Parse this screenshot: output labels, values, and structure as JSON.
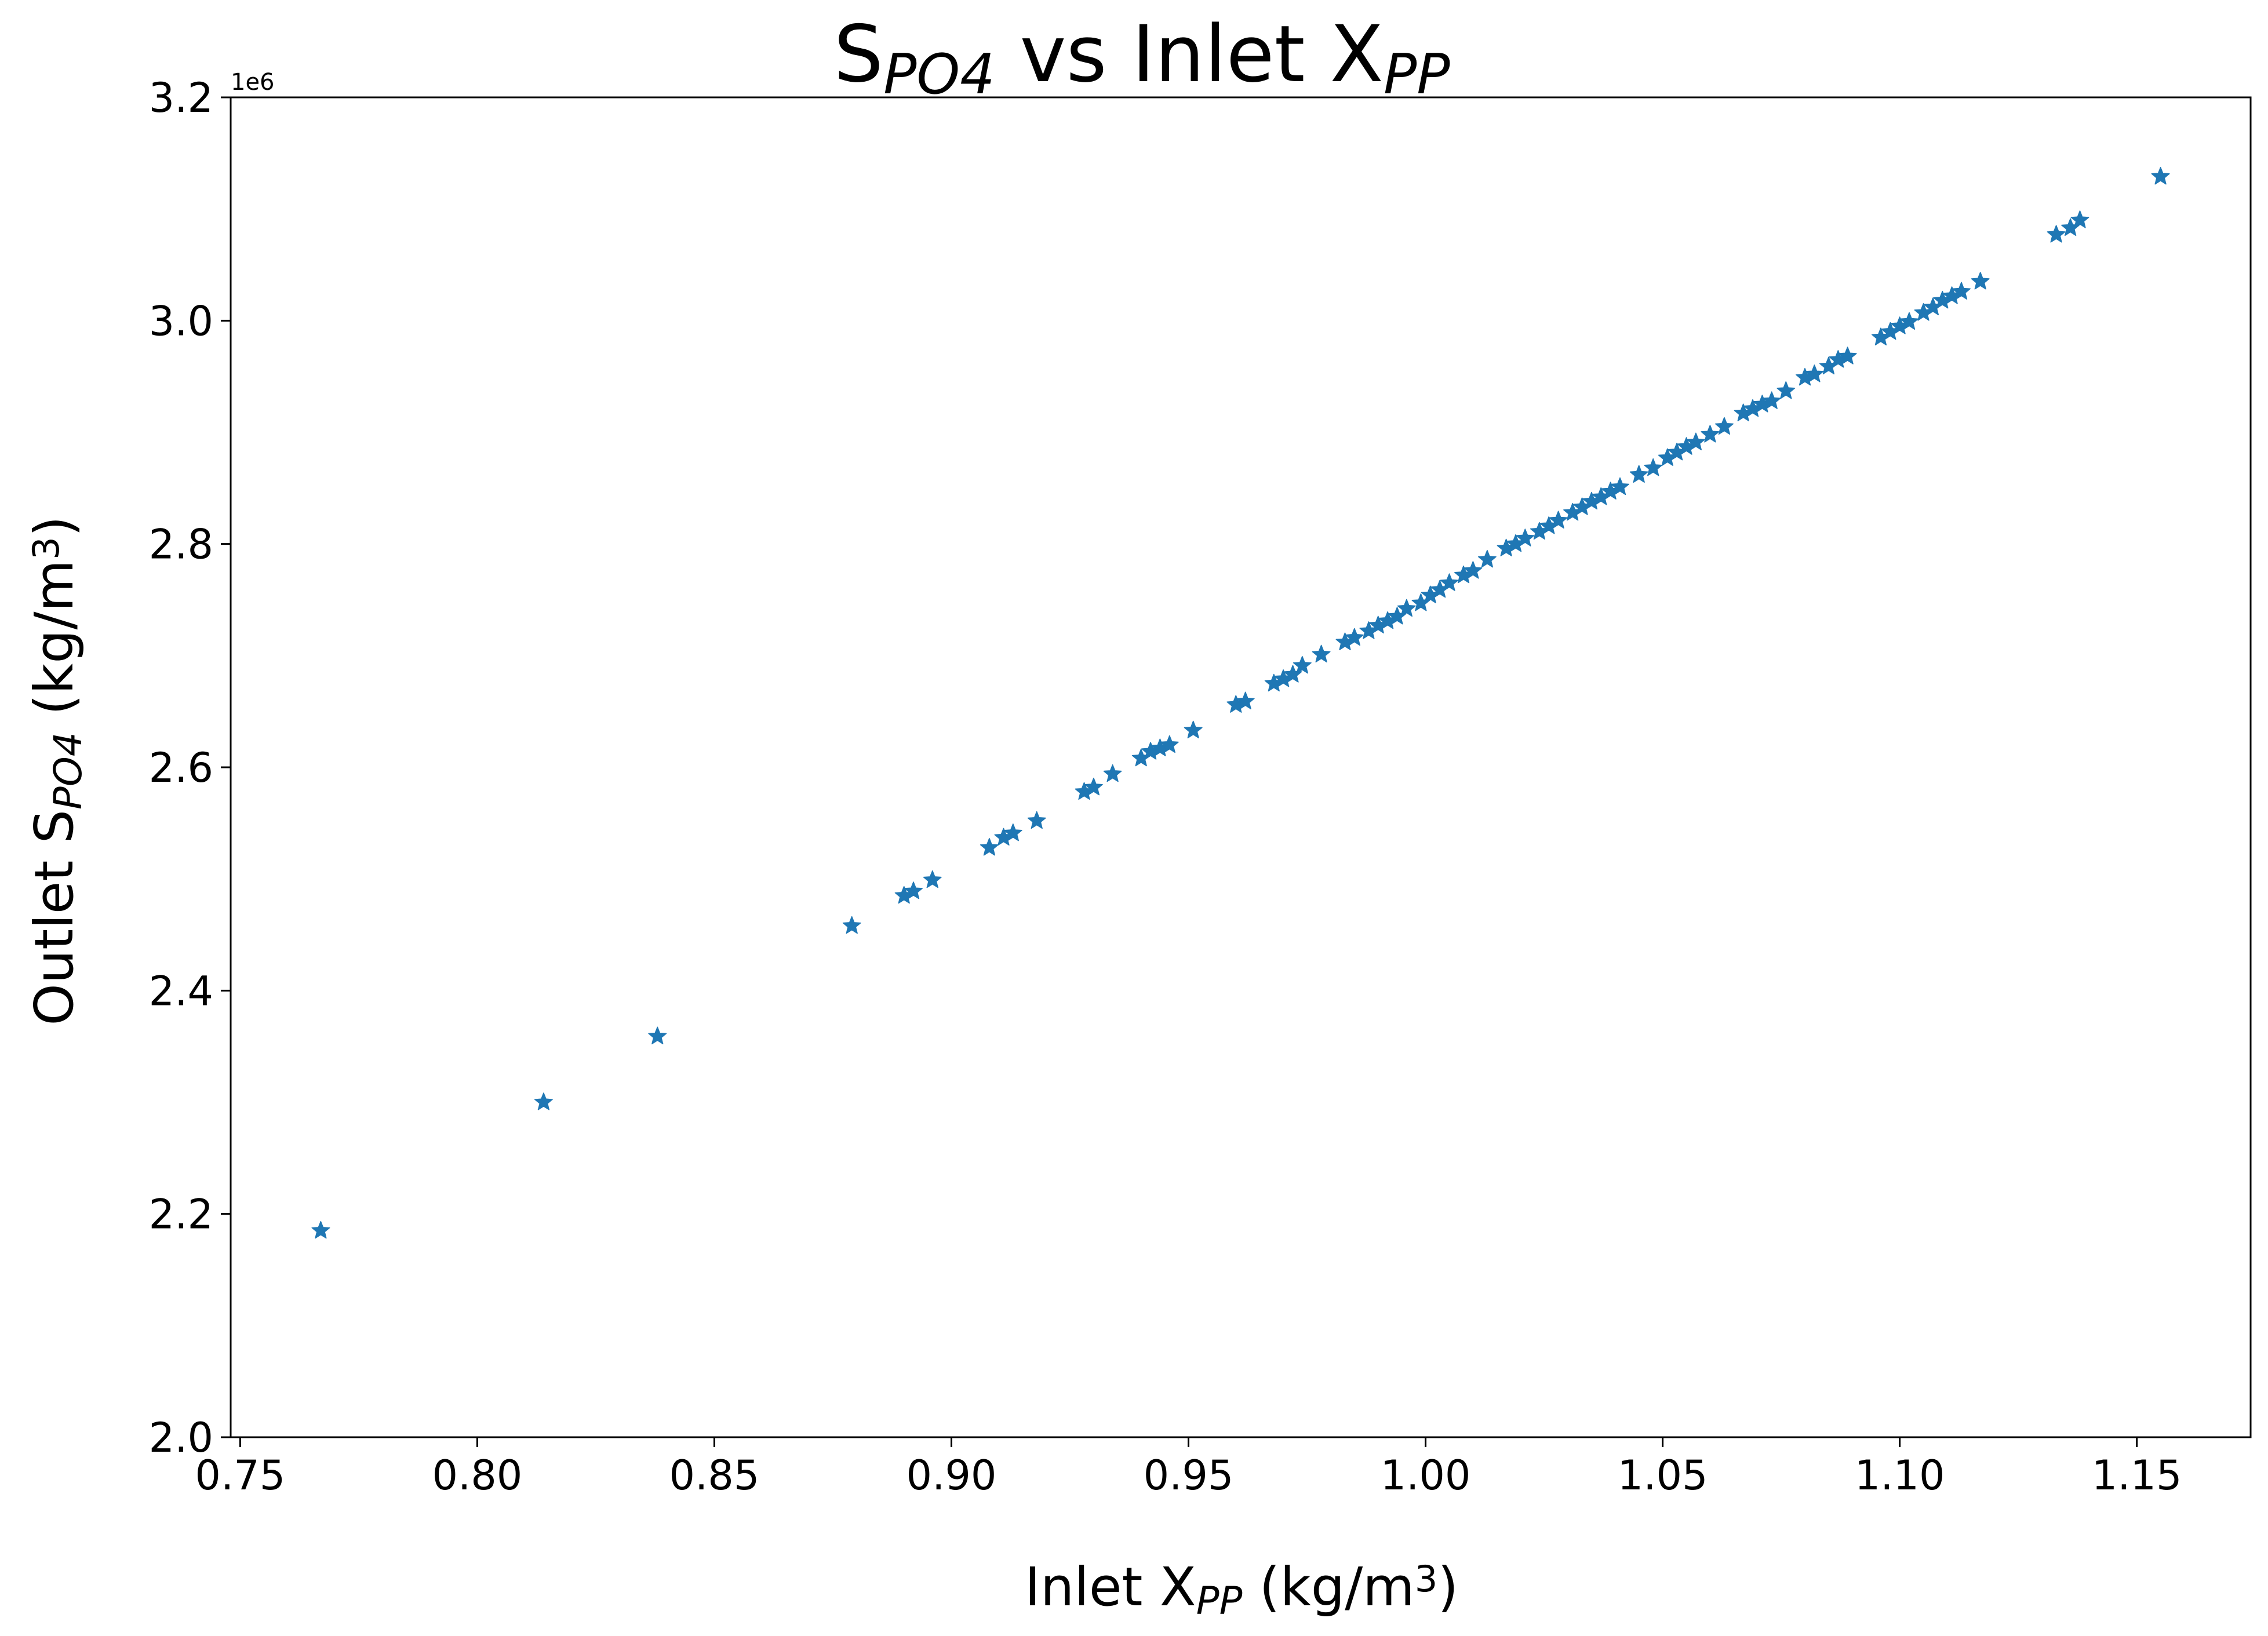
{
  "chart_data": {
    "type": "scatter",
    "title": {
      "main": "S",
      "sub1": "PO4",
      "mid": " vs Inlet X",
      "sub2": "PP"
    },
    "xlabel": {
      "main": "Inlet X",
      "sub": "PP",
      "unit_pre": " (kg/m",
      "sup": "3",
      "unit_post": ")"
    },
    "ylabel": {
      "main": "Outlet S",
      "sub": "PO4",
      "unit_pre": " (kg/m",
      "sup": "3",
      "unit_post": ")"
    },
    "y_offset_label": "1e6",
    "xlim": [
      0.748,
      1.174
    ],
    "ylim": [
      2.0,
      3.2
    ],
    "y_scale_factor": 1000000,
    "x_ticks": [
      "0.75",
      "0.80",
      "0.85",
      "0.90",
      "0.95",
      "1.00",
      "1.05",
      "1.10",
      "1.15"
    ],
    "y_ticks": [
      "2.0",
      "2.2",
      "2.4",
      "2.6",
      "2.8",
      "3.0",
      "3.2"
    ],
    "marker": "star",
    "color": "#1f77b4",
    "grid": false,
    "points": [
      [
        0.767,
        2.185
      ],
      [
        0.814,
        2.3
      ],
      [
        0.838,
        2.359
      ],
      [
        0.879,
        2.458
      ],
      [
        0.89,
        2.485
      ],
      [
        0.892,
        2.489
      ],
      [
        0.896,
        2.499
      ],
      [
        0.908,
        2.528
      ],
      [
        0.911,
        2.537
      ],
      [
        0.913,
        2.541
      ],
      [
        0.918,
        2.552
      ],
      [
        0.928,
        2.578
      ],
      [
        0.93,
        2.582
      ],
      [
        0.934,
        2.594
      ],
      [
        0.94,
        2.608
      ],
      [
        0.942,
        2.614
      ],
      [
        0.944,
        2.617
      ],
      [
        0.946,
        2.62
      ],
      [
        0.951,
        2.633
      ],
      [
        0.96,
        2.656
      ],
      [
        0.962,
        2.659
      ],
      [
        0.968,
        2.675
      ],
      [
        0.97,
        2.679
      ],
      [
        0.972,
        2.683
      ],
      [
        0.974,
        2.691
      ],
      [
        0.978,
        2.701
      ],
      [
        0.983,
        2.712
      ],
      [
        0.985,
        2.716
      ],
      [
        0.988,
        2.722
      ],
      [
        0.99,
        2.727
      ],
      [
        0.992,
        2.731
      ],
      [
        0.994,
        2.735
      ],
      [
        0.996,
        2.742
      ],
      [
        0.999,
        2.747
      ],
      [
        1.001,
        2.754
      ],
      [
        1.003,
        2.759
      ],
      [
        1.005,
        2.765
      ],
      [
        1.008,
        2.772
      ],
      [
        1.01,
        2.776
      ],
      [
        1.013,
        2.786
      ],
      [
        1.017,
        2.796
      ],
      [
        1.019,
        2.8
      ],
      [
        1.021,
        2.805
      ],
      [
        1.024,
        2.811
      ],
      [
        1.026,
        2.816
      ],
      [
        1.028,
        2.821
      ],
      [
        1.031,
        2.828
      ],
      [
        1.033,
        2.833
      ],
      [
        1.035,
        2.838
      ],
      [
        1.037,
        2.842
      ],
      [
        1.039,
        2.847
      ],
      [
        1.041,
        2.851
      ],
      [
        1.045,
        2.862
      ],
      [
        1.048,
        2.868
      ],
      [
        1.051,
        2.877
      ],
      [
        1.053,
        2.882
      ],
      [
        1.055,
        2.887
      ],
      [
        1.057,
        2.891
      ],
      [
        1.06,
        2.898
      ],
      [
        1.063,
        2.905
      ],
      [
        1.067,
        2.917
      ],
      [
        1.069,
        2.921
      ],
      [
        1.071,
        2.925
      ],
      [
        1.073,
        2.928
      ],
      [
        1.076,
        2.937
      ],
      [
        1.08,
        2.949
      ],
      [
        1.082,
        2.952
      ],
      [
        1.085,
        2.959
      ],
      [
        1.087,
        2.965
      ],
      [
        1.089,
        2.968
      ],
      [
        1.096,
        2.985
      ],
      [
        1.098,
        2.99
      ],
      [
        1.1,
        2.995
      ],
      [
        1.102,
        2.999
      ],
      [
        1.105,
        3.007
      ],
      [
        1.107,
        3.012
      ],
      [
        1.109,
        3.018
      ],
      [
        1.111,
        3.022
      ],
      [
        1.113,
        3.026
      ],
      [
        1.117,
        3.035
      ],
      [
        1.133,
        3.077
      ],
      [
        1.136,
        3.083
      ],
      [
        1.138,
        3.09
      ],
      [
        1.155,
        3.129
      ]
    ]
  }
}
